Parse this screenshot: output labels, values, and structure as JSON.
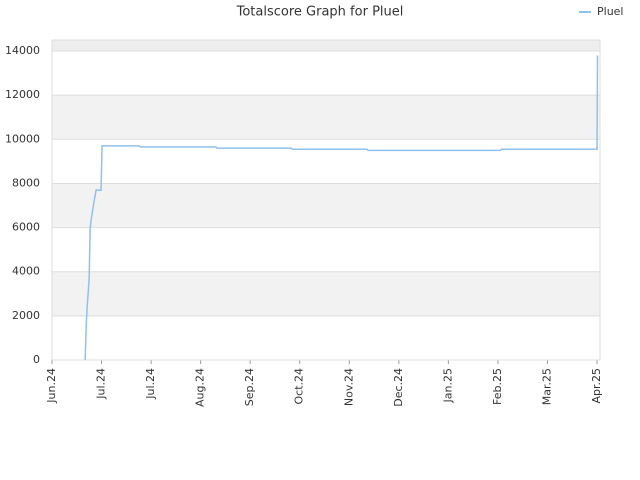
{
  "chart_data": {
    "type": "line",
    "title": "Totalscore Graph for Pluel",
    "x": [
      0.67,
      0.69,
      0.71,
      0.75,
      0.77,
      0.8,
      0.85,
      0.89,
      0.99,
      1.01,
      1.76,
      1.78,
      3.31,
      3.33,
      4.83,
      4.85,
      6.36,
      6.38,
      9.05,
      9.07,
      11.0,
      11.01
    ],
    "series": [
      {
        "name": "Pluel",
        "color": "#8fc1ee",
        "values": [
          0,
          1600,
          2400,
          3700,
          6000,
          6500,
          7200,
          7700,
          7700,
          9700,
          9700,
          9650,
          9650,
          9600,
          9600,
          9550,
          9550,
          9500,
          9500,
          9550,
          9550,
          13800
        ]
      }
    ],
    "xlim": [
      0,
      11.06
    ],
    "xticks": [
      {
        "value": 0,
        "label": "Jun.24"
      },
      {
        "value": 1,
        "label": "Jul.24"
      },
      {
        "value": 2,
        "label": "Jul.24"
      },
      {
        "value": 3,
        "label": "Aug.24"
      },
      {
        "value": 4,
        "label": "Sep.24"
      },
      {
        "value": 5,
        "label": "Oct.24"
      },
      {
        "value": 6,
        "label": "Nov.24"
      },
      {
        "value": 7,
        "label": "Dec.24"
      },
      {
        "value": 8,
        "label": "Jan.25"
      },
      {
        "value": 9,
        "label": "Feb.25"
      },
      {
        "value": 10,
        "label": "Mar.25"
      },
      {
        "value": 11,
        "label": "Apr.25"
      }
    ],
    "ylim": [
      0,
      14500
    ],
    "yticks": [
      0,
      2000,
      4000,
      6000,
      8000,
      10000,
      12000,
      14000
    ],
    "grid": true,
    "legend": "top-right"
  }
}
